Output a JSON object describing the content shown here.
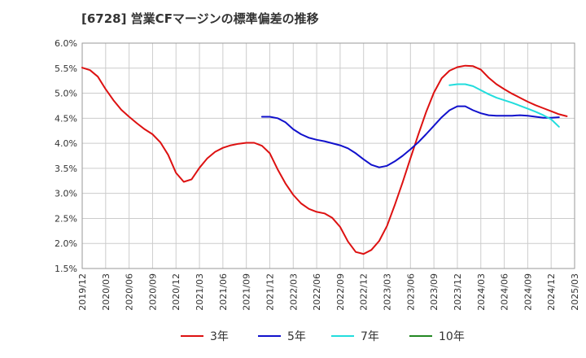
{
  "chart_data": {
    "type": "line",
    "title": "[6728]  営業CFマージンの標準偏差の推移",
    "xlabel": "",
    "ylabel": "",
    "ylim": [
      1.5,
      6.0
    ],
    "y_unit": "%",
    "y_ticks": [
      "6.0%",
      "5.5%",
      "5.0%",
      "4.5%",
      "4.0%",
      "3.5%",
      "3.0%",
      "2.5%",
      "2.0%",
      "1.5%"
    ],
    "x_ticks": [
      "2019/12",
      "2020/03",
      "2020/06",
      "2020/09",
      "2020/12",
      "2021/03",
      "2021/06",
      "2021/09",
      "2021/12",
      "2022/03",
      "2022/06",
      "2022/09",
      "2022/12",
      "2023/03",
      "2023/06",
      "2023/09",
      "2023/12",
      "2024/03",
      "2024/06",
      "2024/09",
      "2024/12",
      "2025/03"
    ],
    "grid": true,
    "legend_position": "bottom",
    "series": [
      {
        "name": "3年",
        "color": "#dd1111",
        "start": "2019/12",
        "values": [
          5.51,
          5.46,
          5.33,
          5.08,
          4.86,
          4.67,
          4.53,
          4.4,
          4.28,
          4.18,
          4.02,
          3.77,
          3.41,
          3.23,
          3.28,
          3.51,
          3.7,
          3.83,
          3.91,
          3.96,
          3.99,
          4.01,
          4.01,
          3.95,
          3.8,
          3.48,
          3.2,
          2.97,
          2.8,
          2.69,
          2.63,
          2.6,
          2.51,
          2.33,
          2.04,
          1.83,
          1.79,
          1.87,
          2.05,
          2.35,
          2.77,
          3.22,
          3.7,
          4.17,
          4.62,
          5.01,
          5.3,
          5.45,
          5.52,
          5.55,
          5.54,
          5.47,
          5.31,
          5.18,
          5.08,
          4.99,
          4.91,
          4.83,
          4.76,
          4.7,
          4.64,
          4.58,
          4.54
        ]
      },
      {
        "name": "5年",
        "color": "#1111cc",
        "start": "2021/11",
        "values": [
          4.53,
          4.53,
          4.5,
          4.42,
          4.28,
          4.18,
          4.11,
          4.07,
          4.04,
          4.0,
          3.96,
          3.9,
          3.8,
          3.68,
          3.57,
          3.52,
          3.55,
          3.64,
          3.75,
          3.88,
          4.02,
          4.18,
          4.35,
          4.52,
          4.66,
          4.74,
          4.74,
          4.66,
          4.6,
          4.56,
          4.55,
          4.55,
          4.55,
          4.56,
          4.55,
          4.53,
          4.51,
          4.51,
          4.52
        ]
      },
      {
        "name": "7年",
        "color": "#22dddd",
        "start": "2023/11",
        "values": [
          5.16,
          5.18,
          5.18,
          5.14,
          5.06,
          4.98,
          4.91,
          4.86,
          4.81,
          4.75,
          4.69,
          4.63,
          4.56,
          4.48,
          4.33
        ]
      },
      {
        "name": "10年",
        "color": "#228822",
        "start": "",
        "values": []
      }
    ]
  }
}
